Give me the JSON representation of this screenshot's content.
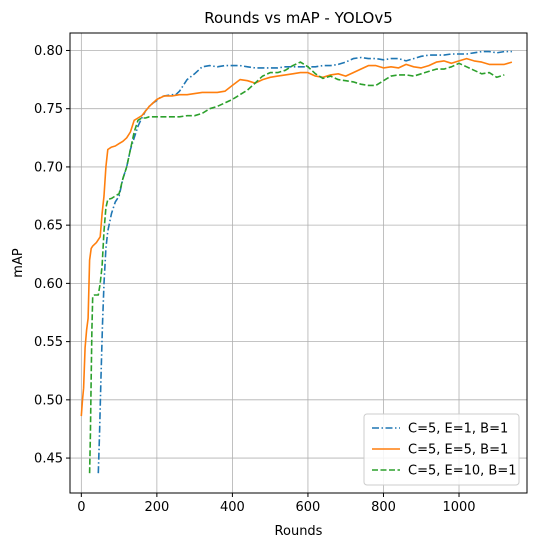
{
  "chart_data": {
    "type": "line",
    "title": "Rounds vs mAP - YOLOv5",
    "xlabel": "Rounds",
    "ylabel": "mAP",
    "xlim": [
      -30,
      1180
    ],
    "ylim": [
      0.42,
      0.815
    ],
    "xticks": [
      0,
      200,
      400,
      600,
      800,
      1000
    ],
    "yticks": [
      0.45,
      0.5,
      0.55,
      0.6,
      0.65,
      0.7,
      0.75,
      0.8
    ],
    "ytick_labels": [
      "0.45",
      "0.50",
      "0.55",
      "0.60",
      "0.65",
      "0.70",
      "0.75",
      "0.80"
    ],
    "grid": true,
    "legend_position": "lower-right",
    "series": [
      {
        "name": "C=5, E=1, B=1",
        "color": "#1f77b4",
        "linestyle": "dashdot",
        "x": [
          45,
          48,
          52,
          56,
          60,
          65,
          70,
          80,
          90,
          100,
          110,
          120,
          130,
          140,
          150,
          160,
          170,
          180,
          190,
          200,
          210,
          220,
          240,
          250,
          260,
          270,
          280,
          300,
          320,
          340,
          360,
          380,
          400,
          420,
          440,
          460,
          480,
          500,
          520,
          540,
          560,
          580,
          600,
          620,
          640,
          660,
          680,
          700,
          720,
          740,
          760,
          780,
          800,
          820,
          840,
          860,
          880,
          900,
          920,
          940,
          960,
          980,
          1000,
          1020,
          1040,
          1060,
          1080,
          1100,
          1120,
          1140
        ],
        "y": [
          0.437,
          0.47,
          0.52,
          0.565,
          0.6,
          0.63,
          0.645,
          0.66,
          0.67,
          0.675,
          0.69,
          0.7,
          0.715,
          0.725,
          0.735,
          0.742,
          0.748,
          0.752,
          0.755,
          0.757,
          0.76,
          0.761,
          0.762,
          0.762,
          0.765,
          0.77,
          0.775,
          0.78,
          0.786,
          0.787,
          0.786,
          0.787,
          0.787,
          0.787,
          0.786,
          0.785,
          0.785,
          0.785,
          0.785,
          0.786,
          0.786,
          0.786,
          0.786,
          0.786,
          0.787,
          0.787,
          0.788,
          0.79,
          0.793,
          0.794,
          0.793,
          0.793,
          0.792,
          0.793,
          0.793,
          0.791,
          0.793,
          0.795,
          0.796,
          0.796,
          0.796,
          0.797,
          0.797,
          0.797,
          0.798,
          0.799,
          0.799,
          0.798,
          0.799,
          0.799
        ]
      },
      {
        "name": "C=5, E=5, B=1",
        "color": "#ff7f0e",
        "linestyle": "solid",
        "x": [
          0,
          3,
          6,
          10,
          14,
          18,
          22,
          26,
          30,
          40,
          50,
          55,
          60,
          65,
          70,
          80,
          90,
          100,
          110,
          120,
          130,
          140,
          150,
          160,
          170,
          180,
          190,
          200,
          220,
          240,
          260,
          280,
          300,
          320,
          340,
          360,
          380,
          400,
          420,
          440,
          460,
          480,
          500,
          520,
          540,
          560,
          580,
          600,
          620,
          640,
          660,
          680,
          700,
          720,
          740,
          760,
          780,
          800,
          820,
          840,
          860,
          880,
          900,
          920,
          940,
          960,
          980,
          1000,
          1020,
          1040,
          1060,
          1080,
          1100,
          1120,
          1140
        ],
        "y": [
          0.486,
          0.5,
          0.51,
          0.545,
          0.56,
          0.57,
          0.62,
          0.63,
          0.632,
          0.635,
          0.64,
          0.66,
          0.675,
          0.7,
          0.715,
          0.717,
          0.718,
          0.72,
          0.722,
          0.725,
          0.73,
          0.74,
          0.742,
          0.744,
          0.748,
          0.752,
          0.755,
          0.758,
          0.761,
          0.761,
          0.762,
          0.762,
          0.763,
          0.764,
          0.764,
          0.764,
          0.765,
          0.77,
          0.775,
          0.774,
          0.772,
          0.775,
          0.777,
          0.778,
          0.779,
          0.78,
          0.781,
          0.781,
          0.778,
          0.777,
          0.779,
          0.78,
          0.778,
          0.781,
          0.784,
          0.787,
          0.787,
          0.785,
          0.786,
          0.785,
          0.788,
          0.786,
          0.785,
          0.787,
          0.79,
          0.791,
          0.789,
          0.791,
          0.793,
          0.791,
          0.79,
          0.788,
          0.788,
          0.788,
          0.79
        ]
      },
      {
        "name": "C=5, E=10, B=1",
        "color": "#2ca02c",
        "linestyle": "dashed",
        "x": [
          22,
          24,
          26,
          28,
          30,
          35,
          40,
          45,
          50,
          55,
          60,
          65,
          70,
          80,
          90,
          100,
          110,
          120,
          130,
          140,
          150,
          160,
          170,
          180,
          200,
          220,
          240,
          260,
          280,
          300,
          320,
          340,
          360,
          380,
          400,
          420,
          440,
          460,
          480,
          500,
          520,
          540,
          560,
          580,
          600,
          620,
          640,
          660,
          680,
          700,
          720,
          740,
          760,
          780,
          800,
          820,
          840,
          860,
          880,
          900,
          920,
          940,
          960,
          980,
          1000,
          1020,
          1040,
          1060,
          1080,
          1100,
          1120
        ],
        "y": [
          0.437,
          0.47,
          0.52,
          0.56,
          0.589,
          0.59,
          0.59,
          0.59,
          0.6,
          0.615,
          0.645,
          0.665,
          0.672,
          0.673,
          0.675,
          0.677,
          0.69,
          0.7,
          0.715,
          0.73,
          0.74,
          0.742,
          0.742,
          0.743,
          0.743,
          0.743,
          0.743,
          0.743,
          0.744,
          0.744,
          0.746,
          0.75,
          0.752,
          0.755,
          0.758,
          0.762,
          0.766,
          0.772,
          0.778,
          0.781,
          0.781,
          0.783,
          0.787,
          0.79,
          0.786,
          0.78,
          0.776,
          0.778,
          0.775,
          0.774,
          0.773,
          0.771,
          0.77,
          0.77,
          0.774,
          0.778,
          0.779,
          0.779,
          0.778,
          0.78,
          0.782,
          0.784,
          0.784,
          0.786,
          0.789,
          0.786,
          0.783,
          0.78,
          0.781,
          0.777,
          0.779
        ]
      }
    ]
  }
}
